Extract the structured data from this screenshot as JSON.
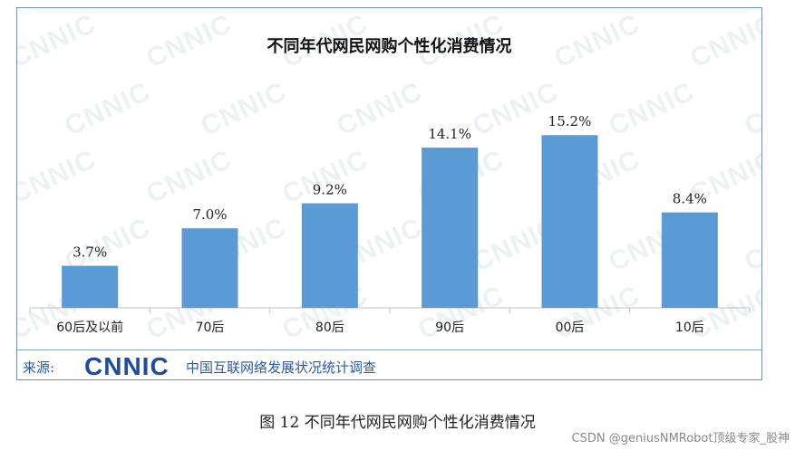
{
  "chart_data": {
    "type": "bar",
    "title": "不同年代网民网购个性化消费情况",
    "categories": [
      "60后及以前",
      "70后",
      "80后",
      "90后",
      "00后",
      "10后"
    ],
    "values": [
      3.7,
      7.0,
      9.2,
      14.1,
      15.2,
      8.4
    ],
    "value_labels": [
      "3.7%",
      "7.0%",
      "9.2%",
      "14.1%",
      "15.2%",
      "8.4%"
    ],
    "unit": "%",
    "ylim": [
      0,
      20
    ],
    "grid": false,
    "bar_color": "#5b9bd5"
  },
  "source": {
    "label": "来源:",
    "logo_text": "CNNIC",
    "org": "中国互联网络发展状况统计调查"
  },
  "watermark_text": "CNNIC",
  "caption": "图 12  不同年代网民网购个性化消费情况",
  "credit": "CSDN @geniusNMRobot顶级专家_股神",
  "colors": {
    "brand": "#2a5aa8",
    "border": "#6f8fbf",
    "axis": "#bfbfbf"
  }
}
